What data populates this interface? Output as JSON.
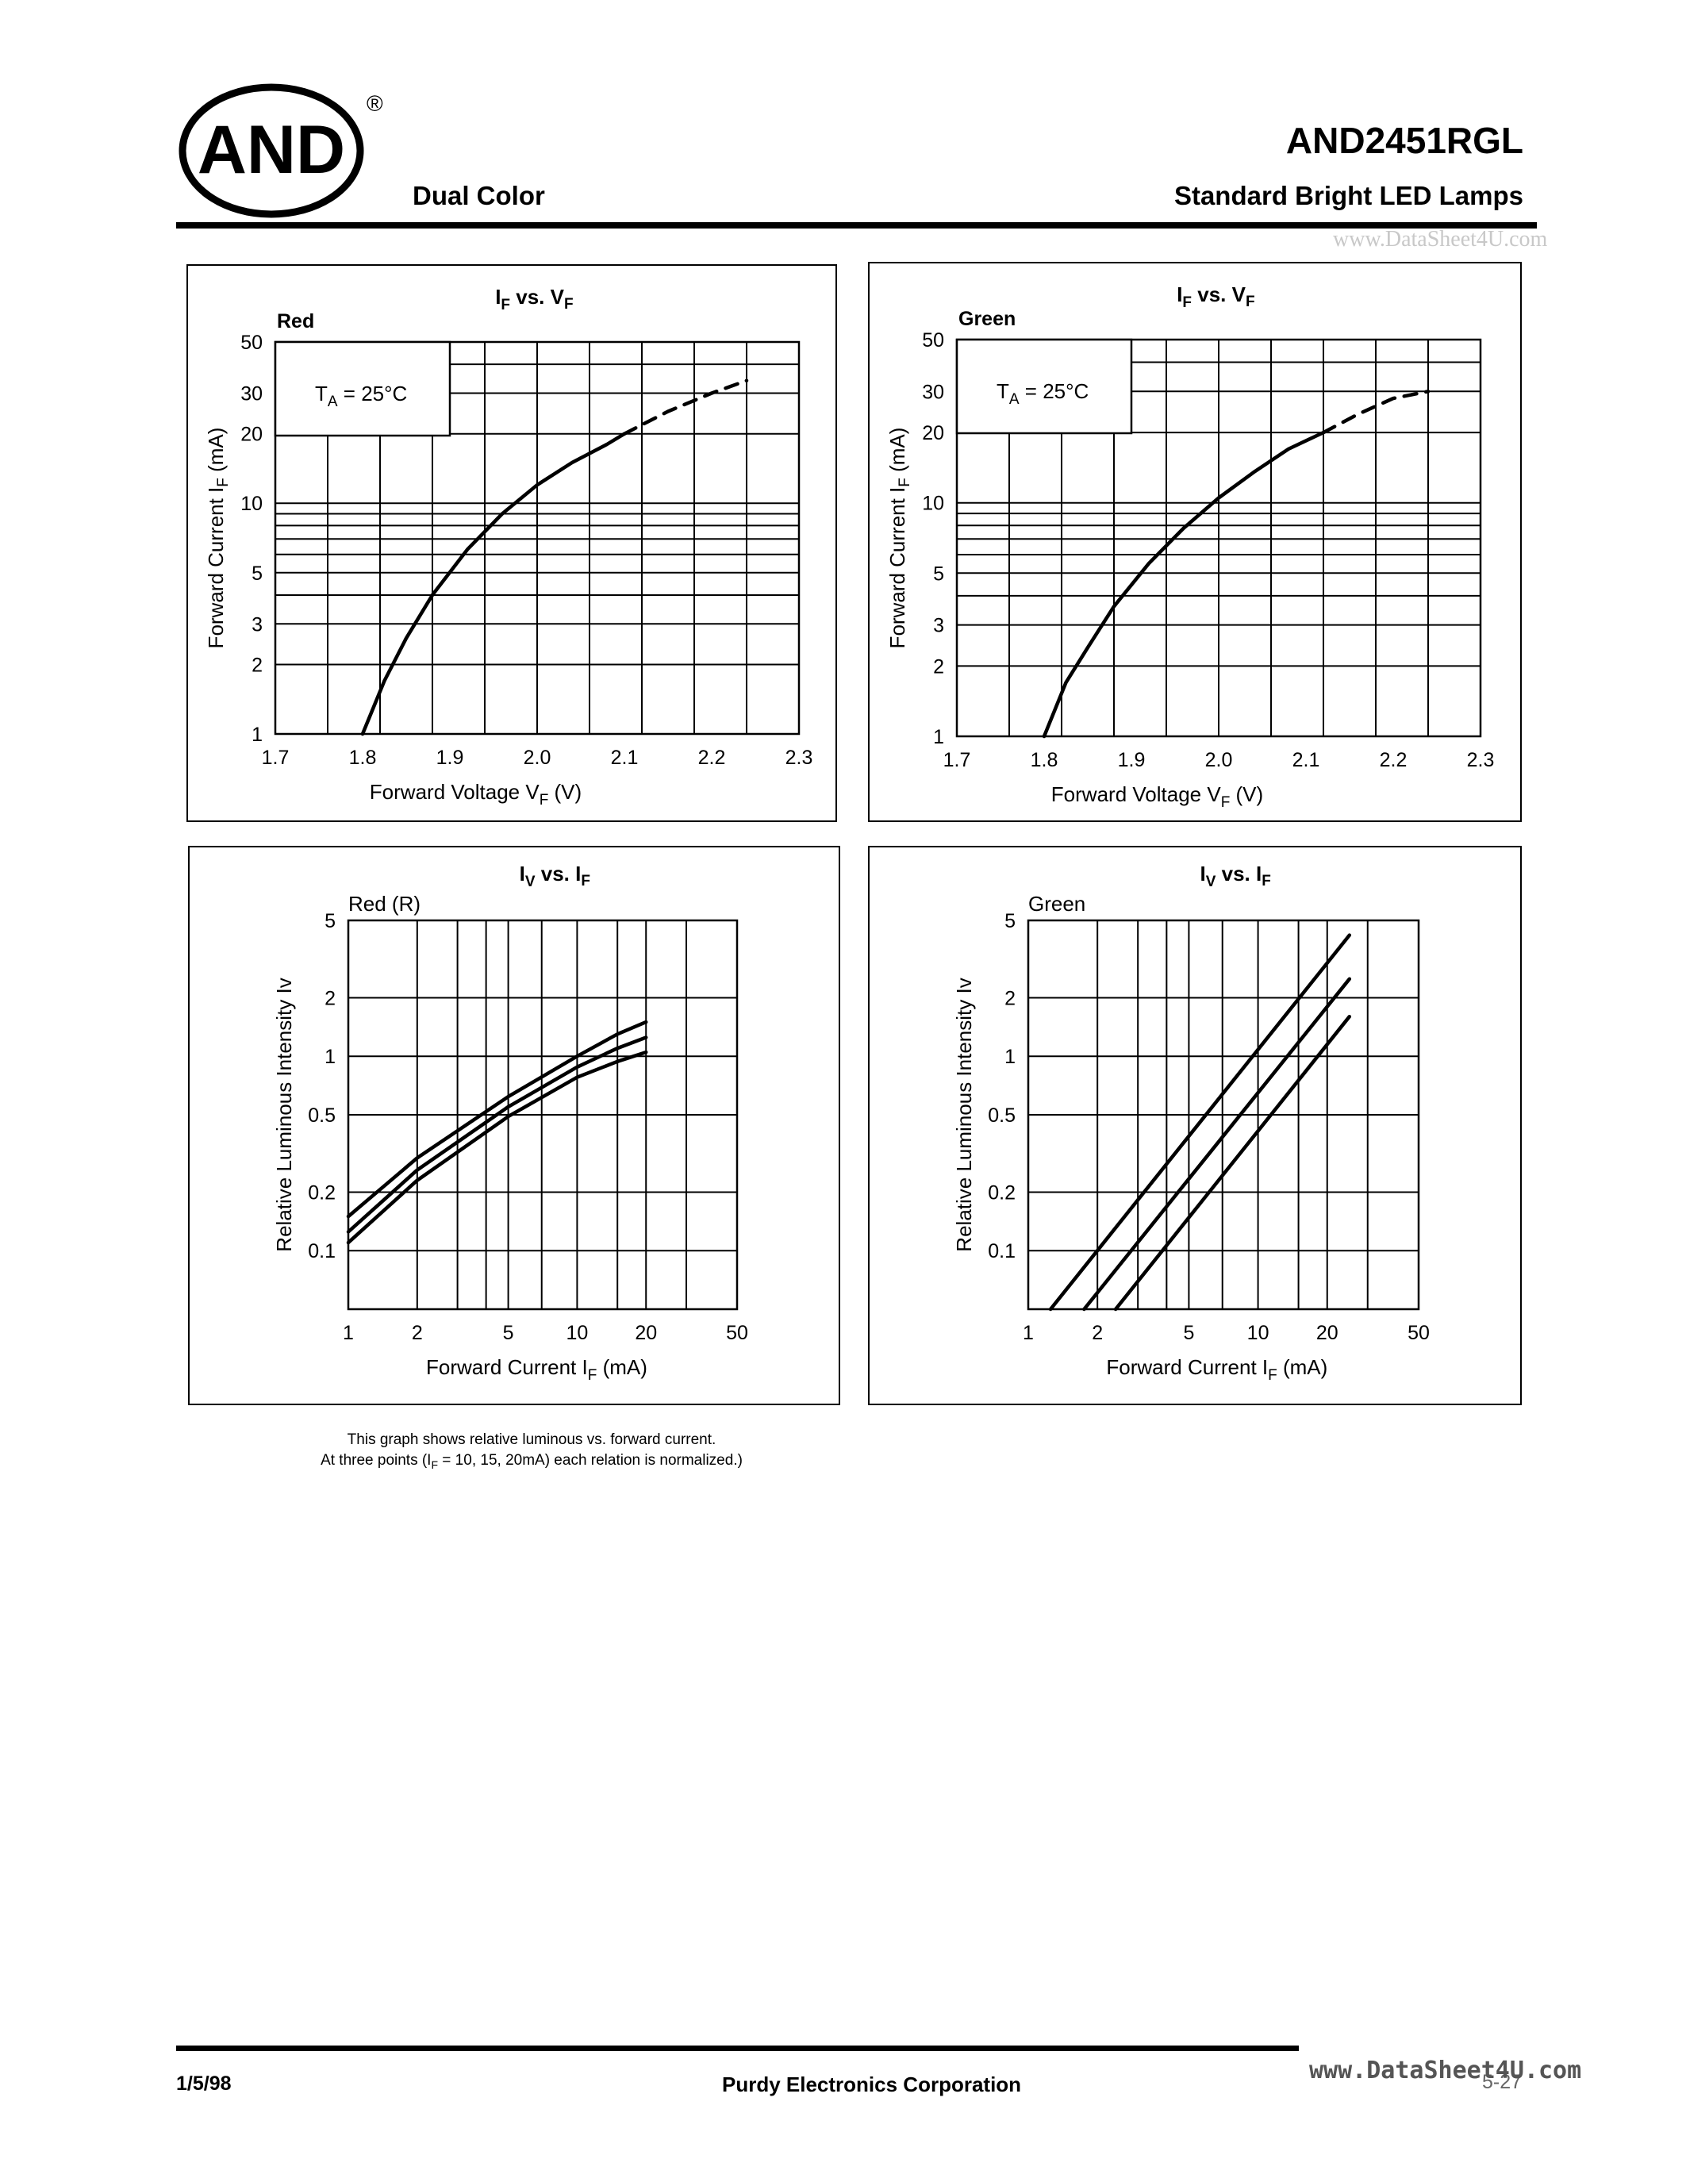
{
  "header": {
    "logo_text": "AND",
    "registered_mark": "®",
    "series": "Dual Color",
    "part_number": "AND2451RGL",
    "product_line": "Standard Bright LED Lamps",
    "watermark": "www.DataSheet4U.com"
  },
  "chart_data": [
    {
      "type": "line",
      "title": "IF vs. VF",
      "title_main": "I",
      "title_sub1": "F",
      "title_mid": " vs. V",
      "title_sub2": "F",
      "series_label": "Red",
      "condition_main": "T",
      "condition_sub": "A",
      "condition_rest": " = 25°C",
      "xlabel_main": "Forward Voltage V",
      "xlabel_sub": "F",
      "xlabel_rest": "  (V)",
      "ylabel_main": "Forward Current  I",
      "ylabel_sub": "F",
      "ylabel_rest": "  (mA)",
      "xscale": "linear",
      "yscale": "log",
      "xlim": [
        1.7,
        2.3
      ],
      "ylim": [
        1,
        50
      ],
      "xticks": [
        "1.7",
        "1.8",
        "1.9",
        "2.0",
        "2.1",
        "2.2",
        "2.3"
      ],
      "yticks": [
        "1",
        "2",
        "3",
        "5",
        "10",
        "20",
        "30",
        "50"
      ],
      "series": [
        {
          "style": "solid",
          "x": [
            1.8,
            1.825,
            1.85,
            1.88,
            1.92,
            1.96,
            2.0,
            2.04,
            2.08,
            2.1
          ],
          "y": [
            1,
            1.7,
            2.6,
            4.0,
            6.3,
            9.0,
            12,
            15,
            18,
            20
          ]
        },
        {
          "style": "dashed",
          "x": [
            2.1,
            2.15,
            2.2,
            2.24
          ],
          "y": [
            20,
            25,
            30,
            34
          ]
        }
      ]
    },
    {
      "type": "line",
      "title": "IF vs. VF",
      "title_main": "I",
      "title_sub1": "F",
      "title_mid": " vs. V",
      "title_sub2": "F",
      "series_label": "Green",
      "condition_main": "T",
      "condition_sub": "A",
      "condition_rest": " = 25°C",
      "xlabel_main": "Forward Voltage V",
      "xlabel_sub": "F",
      "xlabel_rest": "  (V)",
      "ylabel_main": "Forward Current  I",
      "ylabel_sub": "F",
      "ylabel_rest": "  (mA)",
      "xscale": "linear",
      "yscale": "log",
      "xlim": [
        1.7,
        2.3
      ],
      "ylim": [
        1,
        50
      ],
      "xticks": [
        "1.7",
        "1.8",
        "1.9",
        "2.0",
        "2.1",
        "2.2",
        "2.3"
      ],
      "yticks": [
        "1",
        "2",
        "3",
        "5",
        "10",
        "20",
        "30",
        "50"
      ],
      "series": [
        {
          "style": "solid",
          "x": [
            1.8,
            1.825,
            1.85,
            1.88,
            1.92,
            1.96,
            2.0,
            2.04,
            2.08,
            2.12
          ],
          "y": [
            1,
            1.7,
            2.4,
            3.6,
            5.5,
            7.8,
            10.5,
            13.5,
            17,
            20
          ]
        },
        {
          "style": "dashed",
          "x": [
            2.12,
            2.16,
            2.2,
            2.24
          ],
          "y": [
            20,
            24,
            28,
            30
          ]
        }
      ]
    },
    {
      "type": "line",
      "title": "IV vs. IF",
      "title_main": "I",
      "title_sub1": "V",
      "title_mid": " vs. I",
      "title_sub2": "F",
      "series_label": "Red (R)",
      "xlabel_main": "Forward Current I",
      "xlabel_sub": "F",
      "xlabel_rest": " (mA)",
      "ylabel_main": "Relative Luminous Intensity Iv",
      "ylabel_sub": "",
      "ylabel_rest": "",
      "xscale": "log",
      "yscale": "log",
      "xlim": [
        1,
        50
      ],
      "ylim": [
        0.05,
        5
      ],
      "xticks": [
        "1",
        "2",
        "5",
        "10",
        "20",
        "50"
      ],
      "yticks": [
        "0.1",
        "0.2",
        "0.5",
        "1",
        "2",
        "5"
      ],
      "series": [
        {
          "style": "solid",
          "x": [
            1,
            2,
            5,
            10,
            15,
            20
          ],
          "y": [
            0.15,
            0.3,
            0.62,
            1.0,
            1.3,
            1.5
          ]
        },
        {
          "style": "solid",
          "x": [
            1,
            2,
            5,
            10,
            15,
            20
          ],
          "y": [
            0.125,
            0.26,
            0.55,
            0.88,
            1.1,
            1.25
          ]
        },
        {
          "style": "solid",
          "x": [
            1,
            2,
            5,
            10,
            15,
            20
          ],
          "y": [
            0.11,
            0.23,
            0.49,
            0.78,
            0.94,
            1.05
          ]
        }
      ]
    },
    {
      "type": "line",
      "title": "IV vs. IF",
      "title_main": "I",
      "title_sub1": "V",
      "title_mid": " vs. I",
      "title_sub2": "F",
      "series_label": "Green",
      "xlabel_main": "Forward Current I",
      "xlabel_sub": "F",
      "xlabel_rest": " (mA)",
      "ylabel_main": "Relative Luminous Intensity Iv",
      "ylabel_sub": "",
      "ylabel_rest": "",
      "xscale": "log",
      "yscale": "log",
      "xlim": [
        1,
        50
      ],
      "ylim": [
        0.05,
        5
      ],
      "xticks": [
        "1",
        "2",
        "5",
        "10",
        "20",
        "50"
      ],
      "yticks": [
        "0.1",
        "0.2",
        "0.5",
        "1",
        "2",
        "5"
      ],
      "series": [
        {
          "style": "solid",
          "x": [
            1.25,
            25
          ],
          "y": [
            0.05,
            4.2
          ]
        },
        {
          "style": "solid",
          "x": [
            1.75,
            25
          ],
          "y": [
            0.05,
            2.5
          ]
        },
        {
          "style": "solid",
          "x": [
            2.4,
            25
          ],
          "y": [
            0.05,
            1.6
          ]
        }
      ]
    }
  ],
  "note": {
    "line1": "This graph shows relative luminous vs. forward current.",
    "line2_pre": "At three points (I",
    "line2_sub": "F",
    "line2_post": " = 10, 15, 20mA) each relation is normalized.)"
  },
  "footer": {
    "date": "1/5/98",
    "company": "Purdy Electronics Corporation",
    "page": "5-27",
    "watermark": "www.DataSheet4U.com"
  }
}
